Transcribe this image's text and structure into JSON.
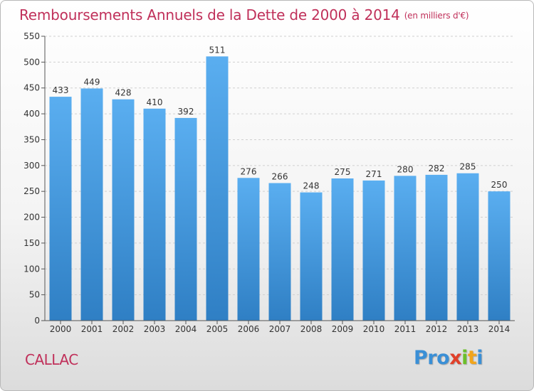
{
  "header": {
    "title": "Remboursements Annuels de la Dette de 2000 à 2014",
    "unit": "(en milliers d'€)"
  },
  "footer": {
    "city": "CALLAC",
    "brand_letters": [
      "P",
      "r",
      "o",
      "x",
      "i",
      "t",
      "i"
    ]
  },
  "colors": {
    "title": "#c0305a",
    "bar_top": "#5aaef0",
    "bar_bottom": "#2f7fc4",
    "brand": [
      "#3a8fd6",
      "#3a8fd6",
      "#3a8fd6",
      "#e0402a",
      "#6cbf2a",
      "#f2a51c",
      "#3a8fd6"
    ]
  },
  "chart_data": {
    "type": "bar",
    "categories": [
      "2000",
      "2001",
      "2002",
      "2003",
      "2004",
      "2005",
      "2006",
      "2007",
      "2008",
      "2009",
      "2010",
      "2011",
      "2012",
      "2013",
      "2014"
    ],
    "values": [
      433,
      449,
      428,
      410,
      392,
      511,
      276,
      266,
      248,
      275,
      271,
      280,
      282,
      285,
      250
    ],
    "title": "Remboursements Annuels de la Dette de 2000 à 2014",
    "ylim": [
      0,
      550
    ],
    "yticks": [
      0,
      50,
      100,
      150,
      200,
      250,
      300,
      350,
      400,
      450,
      500,
      550
    ],
    "grid": true,
    "data_labels": true
  }
}
